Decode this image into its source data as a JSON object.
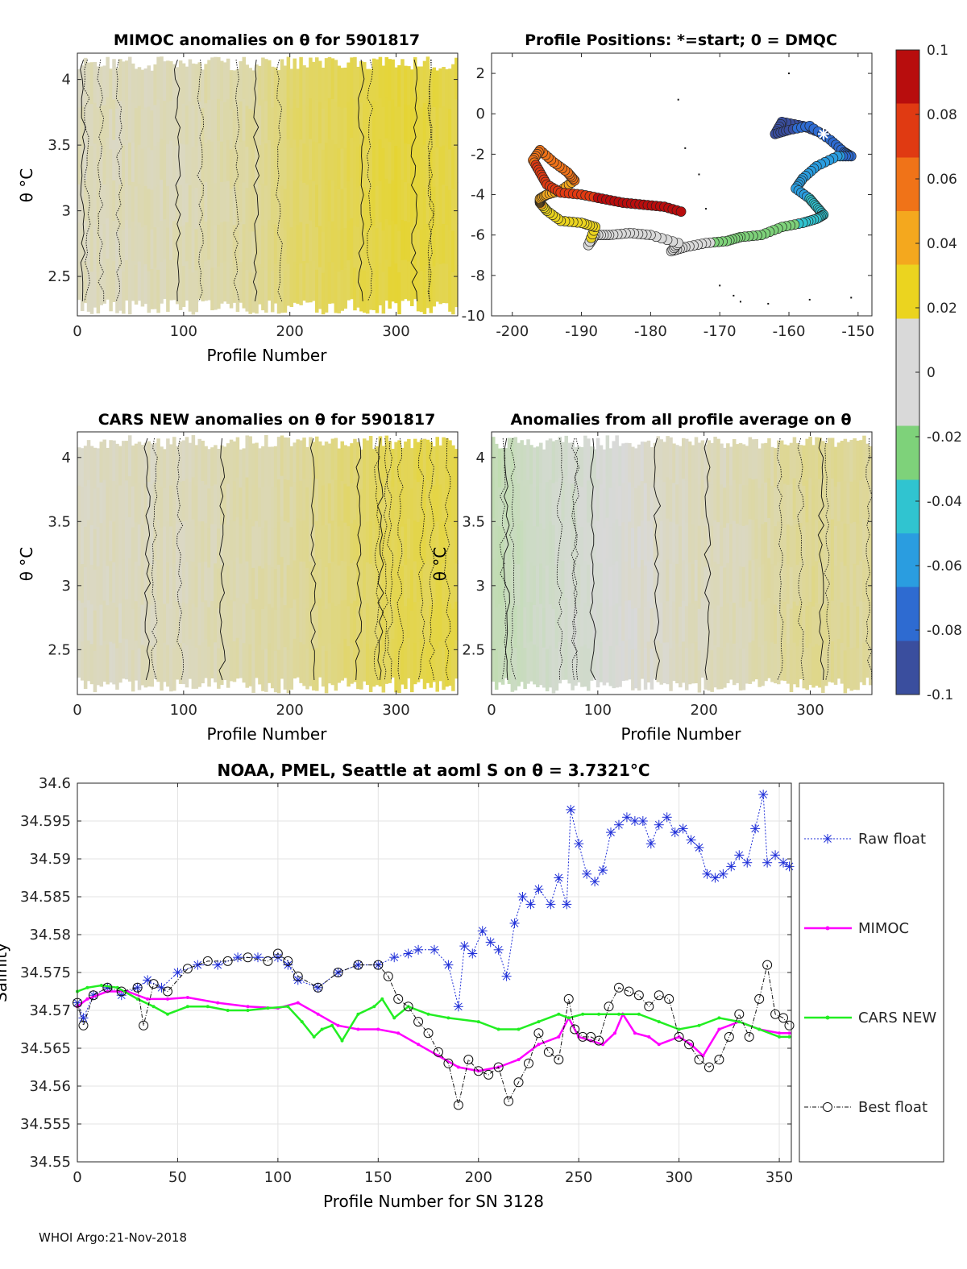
{
  "footer": "WHOI Argo:21-Nov-2018",
  "colors": {
    "raw": "#1f2fd8",
    "mimoc": "#ff00ff",
    "cars": "#22ee22",
    "best": "#111111",
    "anom_neutral": "#d9d9d9",
    "anom_pos": "#e6d426"
  },
  "chart_data": [
    {
      "id": "mimoc",
      "type": "heatmap",
      "title": "MIMOC anomalies on θ  for 5901817",
      "xlabel": "Profile Number",
      "ylabel": "θ °C",
      "xlim": [
        0,
        358
      ],
      "ylim": [
        2.2,
        4.2
      ],
      "xticks": [
        0,
        100,
        200,
        300
      ],
      "yticks": [
        2.5,
        3,
        3.5,
        4
      ],
      "color_trend": {
        "x": [
          0,
          100,
          170,
          200,
          250,
          300,
          358
        ],
        "value": [
          0.005,
          0.006,
          0.01,
          0.018,
          0.022,
          0.026,
          0.024
        ]
      }
    },
    {
      "id": "positions",
      "type": "scatter",
      "title": "Profile Positions: *=start; 0 = DMQC",
      "xlim": [
        -203,
        -148
      ],
      "ylim": [
        -10,
        3
      ],
      "xticks": [
        -200,
        -190,
        -180,
        -170,
        -160,
        -150
      ],
      "yticks": [
        -10,
        -8,
        -6,
        -4,
        -2,
        0,
        2
      ],
      "track": {
        "x": [
          -155,
          -158,
          -161,
          -162,
          -160,
          -157,
          -154,
          -152,
          -151,
          -153,
          -156,
          -158,
          -159,
          -157,
          -156,
          -155,
          -156,
          -158,
          -161,
          -164,
          -167,
          -169,
          -172,
          -175,
          -177,
          -176,
          -180,
          -183,
          -186,
          -188,
          -189,
          -188,
          -190,
          -193,
          -195,
          -196,
          -196,
          -195,
          -193,
          -191,
          -192,
          -194,
          -196,
          -197,
          -196,
          -195,
          -193,
          -190,
          -187,
          -184,
          -181,
          -178,
          -175
        ],
        "y": [
          -1,
          -0.6,
          -0.4,
          -1.0,
          -0.8,
          -0.6,
          -1.3,
          -1.9,
          -2.1,
          -2.1,
          -2.6,
          -3.2,
          -3.7,
          -4.2,
          -4.6,
          -5.0,
          -5.2,
          -5.4,
          -5.6,
          -6.0,
          -6.1,
          -6.3,
          -6.4,
          -6.6,
          -6.8,
          -6.4,
          -6.0,
          -5.9,
          -6.0,
          -6.0,
          -6.5,
          -5.6,
          -5.4,
          -5.3,
          -4.8,
          -4.4,
          -4.2,
          -4.0,
          -3.8,
          -3.3,
          -2.9,
          -2.4,
          -1.8,
          -2.3,
          -2.9,
          -3.5,
          -3.9,
          -4.0,
          -4.2,
          -4.4,
          -4.5,
          -4.6,
          -4.9
        ]
      },
      "start": {
        "x": -155,
        "y": -1
      },
      "dmqc": {
        "x": [
          -160,
          -176,
          -175,
          -173,
          -172,
          -170,
          -168,
          -167,
          -163,
          -157,
          -151
        ],
        "y": [
          2,
          0.7,
          -1.7,
          -3.0,
          -4.7,
          -8.5,
          -9.0,
          -9.3,
          -9.4,
          -9.2,
          -9.1
        ]
      }
    },
    {
      "id": "cars",
      "type": "heatmap",
      "title": "CARS NEW anomalies on θ for 5901817",
      "xlabel": "Profile Number",
      "ylabel": "θ °C",
      "xlim": [
        0,
        358
      ],
      "ylim": [
        2.15,
        4.2
      ],
      "xticks": [
        0,
        100,
        200,
        300
      ],
      "yticks": [
        2.5,
        3,
        3.5,
        4
      ],
      "color_trend": {
        "x": [
          0,
          100,
          200,
          250,
          300,
          358
        ],
        "value": [
          0.004,
          0.005,
          0.009,
          0.016,
          0.022,
          0.024
        ]
      }
    },
    {
      "id": "allprofile",
      "type": "heatmap",
      "title": "Anomalies from all profile average on θ",
      "xlabel": "Profile Number",
      "ylabel": "θ °C",
      "xlim": [
        0,
        358
      ],
      "ylim": [
        2.15,
        4.2
      ],
      "xticks": [
        0,
        100,
        200,
        300
      ],
      "yticks": [
        2.5,
        3,
        3.5,
        4
      ],
      "color_trend": {
        "x": [
          0,
          40,
          100,
          170,
          240,
          300,
          358
        ],
        "value": [
          -0.012,
          -0.006,
          -0.002,
          0.004,
          0.006,
          0.012,
          0.01
        ]
      }
    },
    {
      "id": "colorbar",
      "type": "colorbar",
      "range": [
        -0.1,
        0.1
      ],
      "ticks": [
        "0.1",
        "0.08",
        "0.06",
        "0.04",
        "0.02",
        "0",
        "-0.02",
        "-0.04",
        "-0.06",
        "-0.08",
        "-0.1"
      ],
      "tick_values": [
        0.1,
        0.08,
        0.06,
        0.04,
        0.02,
        0,
        -0.02,
        -0.04,
        -0.06,
        -0.08,
        -0.1
      ],
      "colors": [
        "#3a4e9e",
        "#2e6bd1",
        "#2a9de0",
        "#30c4d0",
        "#7ed27a",
        "#d9d9d9",
        "#d9d9d9",
        "#ebd41f",
        "#f4a81e",
        "#f07318",
        "#e03a12",
        "#b80d0d"
      ]
    },
    {
      "id": "salinity",
      "type": "line",
      "title": "NOAA, PMEL, Seattle at aoml S on θ = 3.7321°C",
      "xlabel": "Profile Number for SN 3128",
      "ylabel": "Salinity",
      "xlim": [
        0,
        356
      ],
      "ylim": [
        34.55,
        34.6
      ],
      "xticks": [
        0,
        50,
        100,
        150,
        200,
        250,
        300,
        350
      ],
      "yticks": [
        "34.55",
        "34.555",
        "34.56",
        "34.565",
        "34.57",
        "34.575",
        "34.58",
        "34.585",
        "34.59",
        "34.595",
        "34.6"
      ],
      "legend": [
        "Raw float",
        "MIMOC",
        "CARS NEW",
        "Best float"
      ],
      "series": [
        {
          "name": "Raw float",
          "x": [
            0,
            3,
            8,
            15,
            22,
            30,
            35,
            42,
            50,
            60,
            70,
            80,
            90,
            100,
            105,
            110,
            120,
            130,
            140,
            150,
            158,
            165,
            170,
            178,
            185,
            190,
            193,
            197,
            202,
            206,
            210,
            214,
            218,
            222,
            226,
            230,
            236,
            240,
            244,
            246,
            250,
            254,
            258,
            262,
            266,
            270,
            274,
            278,
            282,
            286,
            290,
            294,
            298,
            302,
            306,
            310,
            314,
            318,
            322,
            326,
            330,
            334,
            338,
            342,
            344,
            348,
            352,
            355
          ],
          "y": [
            34.571,
            34.569,
            34.572,
            34.573,
            34.572,
            34.573,
            34.574,
            34.573,
            34.575,
            34.576,
            34.576,
            34.577,
            34.577,
            34.577,
            34.576,
            34.574,
            34.573,
            34.575,
            34.576,
            34.576,
            34.577,
            34.5775,
            34.578,
            34.578,
            34.576,
            34.5705,
            34.5785,
            34.5775,
            34.5805,
            34.579,
            34.578,
            34.5745,
            34.5815,
            34.585,
            34.584,
            34.586,
            34.584,
            34.5875,
            34.584,
            34.5965,
            34.592,
            34.588,
            34.587,
            34.5885,
            34.5935,
            34.5945,
            34.5955,
            34.595,
            34.595,
            34.592,
            34.5945,
            34.5955,
            34.5935,
            34.594,
            34.5925,
            34.5915,
            34.588,
            34.5875,
            34.588,
            34.589,
            34.5905,
            34.5895,
            34.594,
            34.5985,
            34.5895,
            34.5905,
            34.5895,
            34.589
          ]
        },
        {
          "name": "MIMOC",
          "x": [
            0,
            5,
            15,
            25,
            35,
            45,
            55,
            70,
            85,
            100,
            110,
            120,
            130,
            140,
            150,
            160,
            170,
            180,
            190,
            200,
            210,
            220,
            230,
            240,
            245,
            250,
            256,
            262,
            268,
            272,
            278,
            285,
            290,
            300,
            306,
            312,
            320,
            330,
            340,
            350,
            355
          ],
          "y": [
            34.5705,
            34.5715,
            34.5725,
            34.5725,
            34.5715,
            34.5715,
            34.5717,
            34.571,
            34.5705,
            34.5703,
            34.571,
            34.5695,
            34.568,
            34.5675,
            34.5675,
            34.567,
            34.5655,
            34.564,
            34.5625,
            34.562,
            34.5625,
            34.5635,
            34.5655,
            34.5665,
            34.569,
            34.5665,
            34.566,
            34.5655,
            34.567,
            34.5695,
            34.567,
            34.5665,
            34.5655,
            34.5665,
            34.5655,
            34.564,
            34.5675,
            34.5685,
            34.5675,
            34.567,
            34.567
          ]
        },
        {
          "name": "CARS NEW",
          "x": [
            0,
            5,
            12,
            20,
            30,
            38,
            45,
            55,
            65,
            75,
            85,
            95,
            105,
            112,
            118,
            122,
            127,
            132,
            140,
            148,
            152,
            158,
            165,
            175,
            185,
            200,
            210,
            220,
            230,
            240,
            245,
            252,
            260,
            270,
            280,
            290,
            300,
            310,
            320,
            330,
            340,
            350,
            355
          ],
          "y": [
            34.5725,
            34.573,
            34.5733,
            34.573,
            34.5715,
            34.5705,
            34.5695,
            34.5705,
            34.5705,
            34.57,
            34.57,
            34.5703,
            34.5705,
            34.5685,
            34.5665,
            34.5675,
            34.568,
            34.566,
            34.5695,
            34.5705,
            34.5715,
            34.569,
            34.5705,
            34.5695,
            34.569,
            34.5685,
            34.5675,
            34.5675,
            34.5685,
            34.5695,
            34.569,
            34.5695,
            34.5695,
            34.5695,
            34.5695,
            34.5685,
            34.5675,
            34.568,
            34.569,
            34.5685,
            34.5675,
            34.5665,
            34.5665
          ]
        },
        {
          "name": "Best float",
          "x": [
            0,
            3,
            8,
            15,
            22,
            30,
            33,
            38,
            45,
            55,
            65,
            75,
            85,
            95,
            100,
            105,
            110,
            120,
            130,
            140,
            150,
            155,
            160,
            165,
            170,
            175,
            180,
            185,
            190,
            195,
            200,
            205,
            210,
            215,
            220,
            225,
            230,
            235,
            240,
            245,
            248,
            252,
            256,
            260,
            265,
            270,
            275,
            280,
            285,
            290,
            295,
            300,
            305,
            310,
            315,
            320,
            325,
            330,
            335,
            340,
            344,
            348,
            352,
            355
          ],
          "y": [
            34.571,
            34.568,
            34.572,
            34.573,
            34.5725,
            34.573,
            34.568,
            34.5735,
            34.5725,
            34.5755,
            34.5765,
            34.5765,
            34.577,
            34.5765,
            34.5775,
            34.5765,
            34.5745,
            34.573,
            34.575,
            34.576,
            34.576,
            34.5745,
            34.5715,
            34.5705,
            34.5685,
            34.567,
            34.5645,
            34.563,
            34.5575,
            34.5635,
            34.562,
            34.5615,
            34.5625,
            34.558,
            34.5605,
            34.563,
            34.567,
            34.5645,
            34.5635,
            34.5715,
            34.5675,
            34.5665,
            34.5665,
            34.566,
            34.5705,
            34.573,
            34.5725,
            34.572,
            34.5705,
            34.572,
            34.5715,
            34.5665,
            34.5655,
            34.5635,
            34.5625,
            34.5635,
            34.5665,
            34.5695,
            34.5665,
            34.5715,
            34.576,
            34.5695,
            34.569,
            34.568
          ]
        }
      ]
    }
  ]
}
